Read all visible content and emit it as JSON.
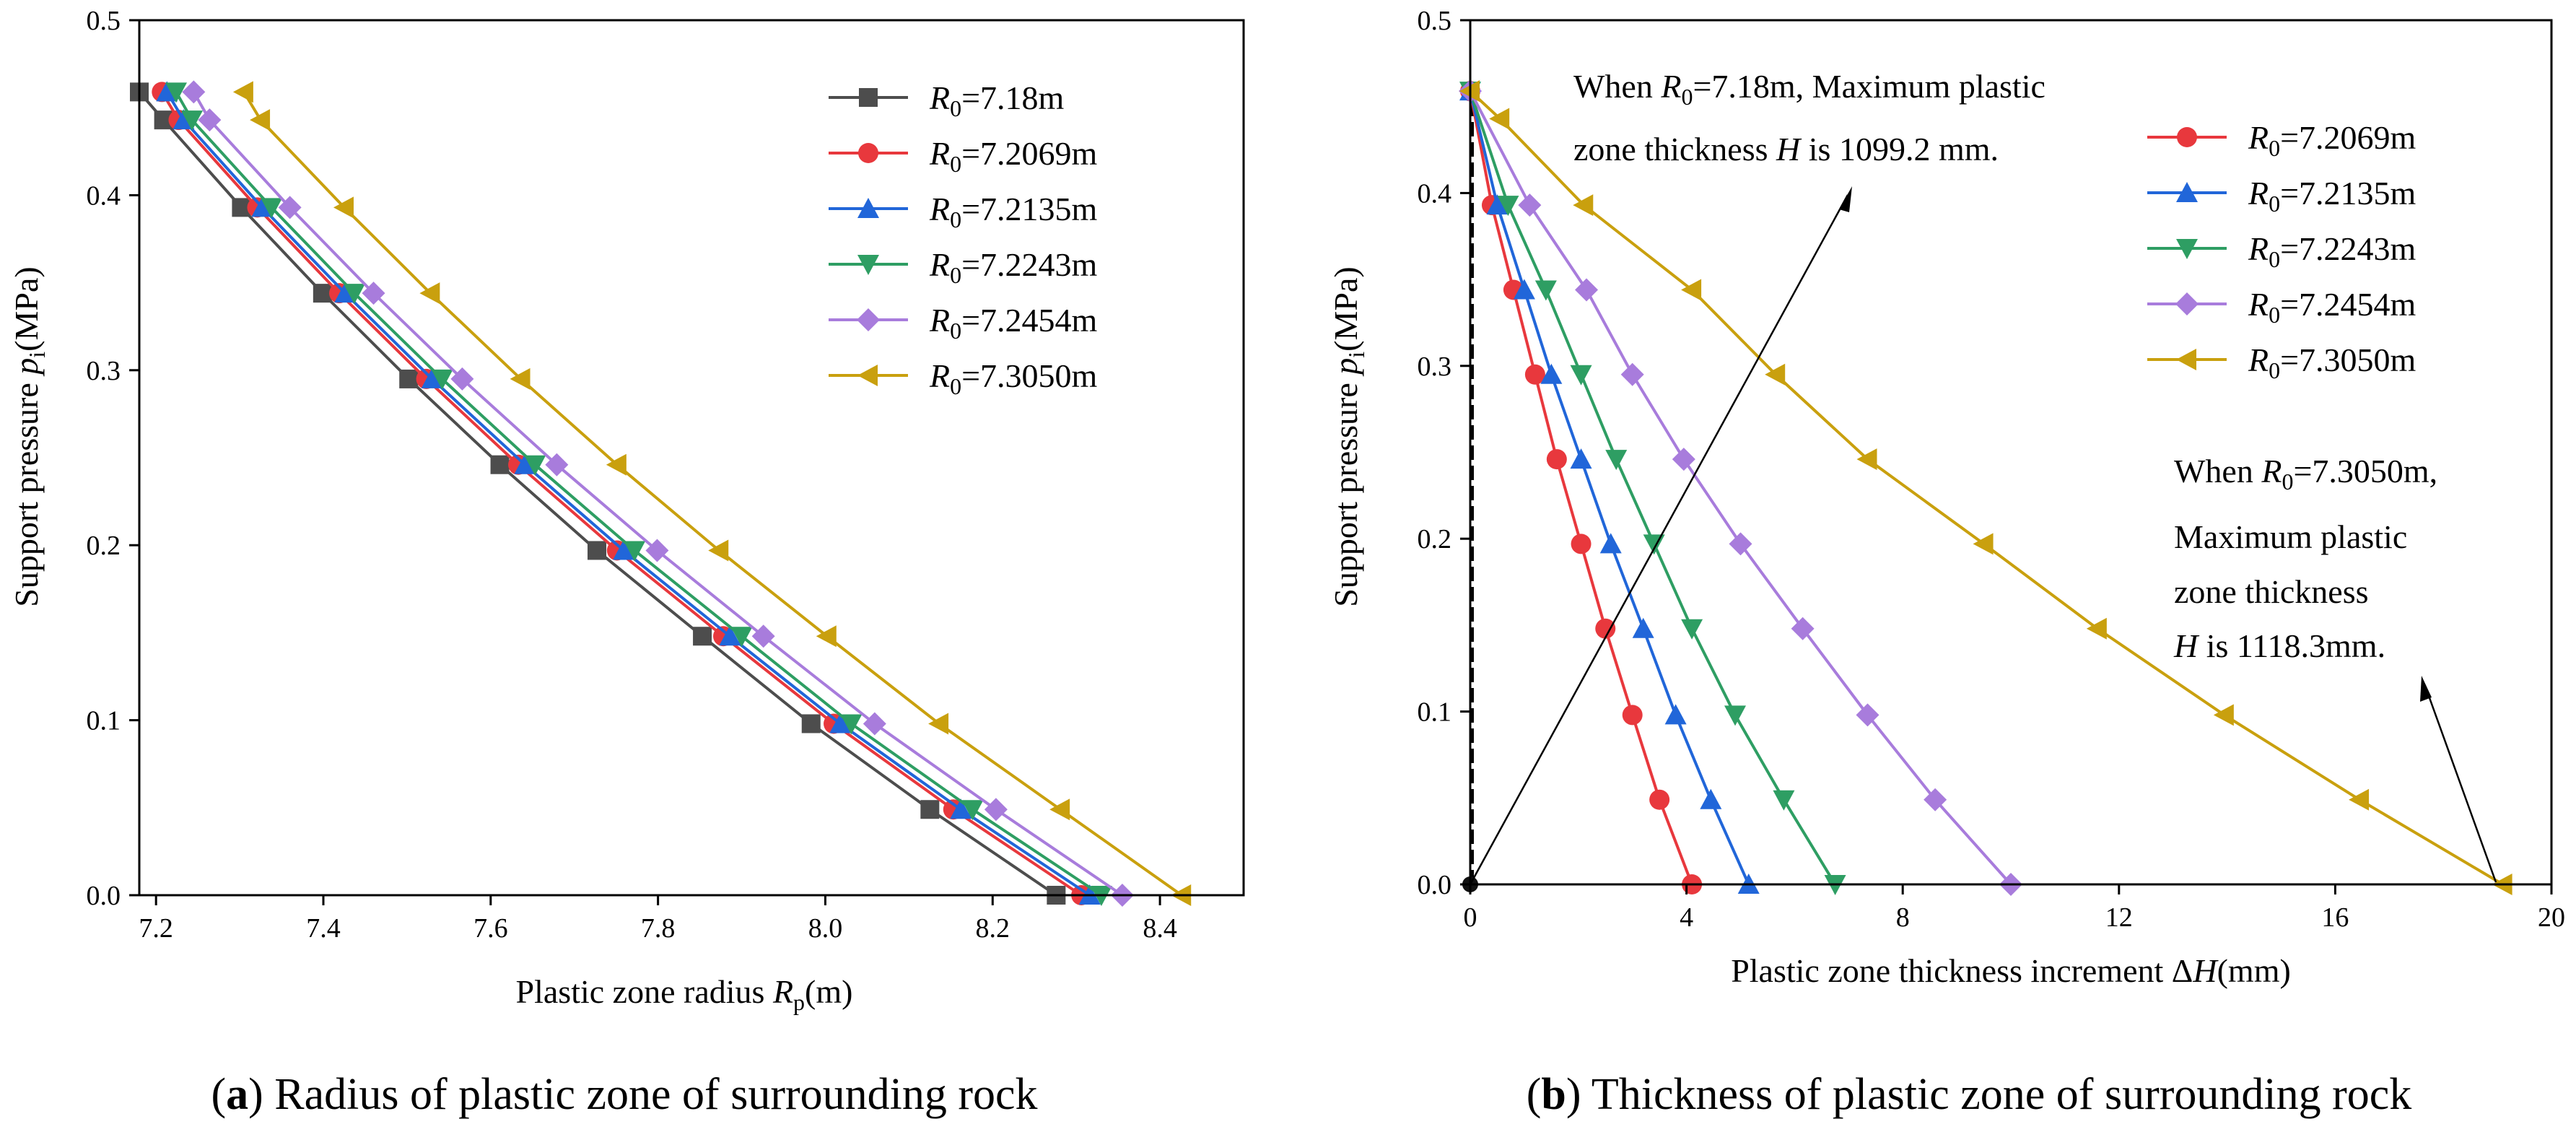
{
  "colors": {
    "s0": "#4d4d4d",
    "s1": "#e8383d",
    "s2": "#2166d9",
    "s3": "#2e9e63",
    "s4": "#a87cdc",
    "s5": "#c9a00e",
    "axis": "#000000"
  },
  "chart_data": [
    {
      "type": "line",
      "panel": "a",
      "caption_letter": "a",
      "caption_text": " Radius of plastic zone of surrounding rock",
      "xlabel": "Plastic zone radius ",
      "xlabel_sym": "R",
      "xlabel_sub": "p",
      "xlabel_tail": "(m)",
      "ylabel": "Support pressure ",
      "ylabel_sym": "p",
      "ylabel_sub": "i",
      "ylabel_tail": "(MPa)",
      "xlim": [
        7.18,
        8.5
      ],
      "ylim": [
        0,
        0.5
      ],
      "xticks": [
        7.2,
        7.4,
        7.6,
        7.8,
        8.0,
        8.2,
        8.4
      ],
      "xtick_labels": [
        "7.2",
        "7.4",
        "7.6",
        "7.8",
        "8.0",
        "8.2",
        "8.4"
      ],
      "yticks": [
        0,
        0.1,
        0.2,
        0.3,
        0.4,
        0.5
      ],
      "ytick_labels": [
        "0.0",
        "0.1",
        "0.2",
        "0.3",
        "0.4",
        "0.5"
      ],
      "series": [
        {
          "name": "R0=7.18m",
          "legend_sym": "R",
          "legend_sub": "0",
          "legend_value": "=7.18m",
          "marker": "square",
          "color_key": "s0",
          "points": [
            [
              7.18,
              0.459
            ],
            [
              7.209,
              0.443
            ],
            [
              7.302,
              0.393
            ],
            [
              7.399,
              0.344
            ],
            [
              7.502,
              0.295
            ],
            [
              7.611,
              0.246
            ],
            [
              7.727,
              0.197
            ],
            [
              7.853,
              0.148
            ],
            [
              7.983,
              0.098
            ],
            [
              8.125,
              0.049
            ],
            [
              8.276,
              0.0
            ]
          ]
        },
        {
          "name": "R0=7.2069m",
          "legend_sym": "R",
          "legend_sub": "0",
          "legend_value": "=7.2069m",
          "marker": "circle",
          "color_key": "s1",
          "points": [
            [
              7.207,
              0.459
            ],
            [
              7.227,
              0.443
            ],
            [
              7.321,
              0.393
            ],
            [
              7.419,
              0.344
            ],
            [
              7.523,
              0.295
            ],
            [
              7.633,
              0.246
            ],
            [
              7.751,
              0.197
            ],
            [
              7.878,
              0.148
            ],
            [
              8.01,
              0.098
            ],
            [
              8.153,
              0.049
            ],
            [
              8.306,
              0.0
            ]
          ]
        },
        {
          "name": "R0=7.2135m",
          "legend_sym": "R",
          "legend_sub": "0",
          "legend_value": "=7.2135m",
          "marker": "triangle-up",
          "color_key": "s2",
          "points": [
            [
              7.213,
              0.459
            ],
            [
              7.233,
              0.443
            ],
            [
              7.327,
              0.393
            ],
            [
              7.426,
              0.344
            ],
            [
              7.53,
              0.295
            ],
            [
              7.641,
              0.246
            ],
            [
              7.759,
              0.197
            ],
            [
              7.886,
              0.148
            ],
            [
              8.018,
              0.098
            ],
            [
              8.162,
              0.049
            ],
            [
              8.316,
              0.0
            ]
          ]
        },
        {
          "name": "R0=7.2243m",
          "legend_sym": "R",
          "legend_sub": "0",
          "legend_value": "=7.2243m",
          "marker": "triangle-down",
          "color_key": "s3",
          "points": [
            [
              7.224,
              0.459
            ],
            [
              7.243,
              0.443
            ],
            [
              7.338,
              0.393
            ],
            [
              7.437,
              0.344
            ],
            [
              7.542,
              0.295
            ],
            [
              7.653,
              0.246
            ],
            [
              7.772,
              0.197
            ],
            [
              7.9,
              0.148
            ],
            [
              8.031,
              0.098
            ],
            [
              8.176,
              0.049
            ],
            [
              8.33,
              0.0
            ]
          ]
        },
        {
          "name": "R0=7.2454m",
          "legend_sym": "R",
          "legend_sub": "0",
          "legend_value": "=7.2454m",
          "marker": "diamond",
          "color_key": "s4",
          "points": [
            [
              7.245,
              0.459
            ],
            [
              7.264,
              0.443
            ],
            [
              7.36,
              0.393
            ],
            [
              7.46,
              0.344
            ],
            [
              7.566,
              0.295
            ],
            [
              7.679,
              0.246
            ],
            [
              7.799,
              0.197
            ],
            [
              7.926,
              0.148
            ],
            [
              8.059,
              0.098
            ],
            [
              8.204,
              0.049
            ],
            [
              8.355,
              0.0
            ]
          ]
        },
        {
          "name": "R0=7.3050m",
          "legend_sym": "R",
          "legend_sub": "0",
          "legend_value": "=7.3050m",
          "marker": "triangle-left",
          "color_key": "s5",
          "points": [
            [
              7.305,
              0.459
            ],
            [
              7.325,
              0.443
            ],
            [
              7.425,
              0.393
            ],
            [
              7.528,
              0.344
            ],
            [
              7.636,
              0.295
            ],
            [
              7.751,
              0.246
            ],
            [
              7.873,
              0.197
            ],
            [
              8.002,
              0.148
            ],
            [
              8.136,
              0.098
            ],
            [
              8.281,
              0.049
            ],
            [
              8.426,
              0.0
            ]
          ]
        }
      ]
    },
    {
      "type": "line",
      "panel": "b",
      "caption_letter": "b",
      "caption_text": " Thickness of plastic zone of surrounding rock",
      "xlabel": "Plastic zone thickness increment Δ",
      "xlabel_sym": "H",
      "xlabel_sub": "",
      "xlabel_tail": "(mm)",
      "ylabel": "Support pressure ",
      "ylabel_sym": "p",
      "ylabel_sub": "i",
      "ylabel_tail": "(MPa)",
      "xlim": [
        0,
        20
      ],
      "ylim": [
        0,
        0.5
      ],
      "xticks": [
        0,
        4,
        8,
        12,
        16,
        20
      ],
      "xtick_labels": [
        "0",
        "4",
        "8",
        "12",
        "16",
        "20"
      ],
      "yticks": [
        0,
        0.1,
        0.2,
        0.3,
        0.4,
        0.5
      ],
      "ytick_labels": [
        "0.0",
        "0.1",
        "0.2",
        "0.3",
        "0.4",
        "0.5"
      ],
      "annotations": [
        {
          "line1_pre": "When ",
          "sym": "R",
          "sub": "0",
          "line1_post": "=7.18m, Maximum plastic",
          "line2_pre": "zone thickness ",
          "line2_sym": "H",
          "line2_post": " is 1099.2 mm."
        },
        {
          "line1_pre": "When ",
          "sym": "R",
          "sub": "0",
          "line1_post": "=7.3050m,",
          "line2": "Maximum plastic",
          "line3": "zone thickness",
          "line4_sym": "H",
          "line4_post": " is 1118.3mm."
        }
      ],
      "baseline_series": {
        "name": "R0=7.18m",
        "points": [
          [
            0,
            0
          ],
          [
            0,
            0.459
          ]
        ]
      },
      "series": [
        {
          "name": "R0=7.2069m",
          "legend_sym": "R",
          "legend_sub": "0",
          "legend_value": "=7.2069m",
          "marker": "circle",
          "color_key": "s1",
          "points": [
            [
              0,
              0.459
            ],
            [
              0.4,
              0.393
            ],
            [
              0.8,
              0.344
            ],
            [
              1.2,
              0.295
            ],
            [
              1.6,
              0.246
            ],
            [
              2.05,
              0.197
            ],
            [
              2.5,
              0.148
            ],
            [
              3.0,
              0.098
            ],
            [
              3.5,
              0.049
            ],
            [
              4.1,
              0.0
            ]
          ]
        },
        {
          "name": "R0=7.2135m",
          "legend_sym": "R",
          "legend_sub": "0",
          "legend_value": "=7.2135m",
          "marker": "triangle-up",
          "color_key": "s2",
          "points": [
            [
              0,
              0.459
            ],
            [
              0.5,
              0.393
            ],
            [
              1.0,
              0.344
            ],
            [
              1.5,
              0.295
            ],
            [
              2.05,
              0.246
            ],
            [
              2.6,
              0.197
            ],
            [
              3.2,
              0.148
            ],
            [
              3.8,
              0.098
            ],
            [
              4.45,
              0.049
            ],
            [
              5.15,
              0.0
            ]
          ]
        },
        {
          "name": "R0=7.2243m",
          "legend_sym": "R",
          "legend_sub": "0",
          "legend_value": "=7.2243m",
          "marker": "triangle-down",
          "color_key": "s3",
          "points": [
            [
              0,
              0.459
            ],
            [
              0.7,
              0.393
            ],
            [
              1.4,
              0.344
            ],
            [
              2.05,
              0.295
            ],
            [
              2.7,
              0.246
            ],
            [
              3.4,
              0.197
            ],
            [
              4.1,
              0.148
            ],
            [
              4.9,
              0.098
            ],
            [
              5.8,
              0.049
            ],
            [
              6.75,
              0.0
            ]
          ]
        },
        {
          "name": "R0=7.2454m",
          "legend_sym": "R",
          "legend_sub": "0",
          "legend_value": "=7.2454m",
          "marker": "diamond",
          "color_key": "s4",
          "points": [
            [
              0,
              0.459
            ],
            [
              1.1,
              0.393
            ],
            [
              2.15,
              0.344
            ],
            [
              3.0,
              0.295
            ],
            [
              3.95,
              0.246
            ],
            [
              5.0,
              0.197
            ],
            [
              6.15,
              0.148
            ],
            [
              7.35,
              0.098
            ],
            [
              8.6,
              0.049
            ],
            [
              10.0,
              0.0
            ]
          ]
        },
        {
          "name": "R0=7.3050m",
          "legend_sym": "R",
          "legend_sub": "0",
          "legend_value": "=7.3050m",
          "marker": "triangle-left",
          "color_key": "s5",
          "points": [
            [
              0,
              0.459
            ],
            [
              0.55,
              0.443
            ],
            [
              2.1,
              0.393
            ],
            [
              4.1,
              0.344
            ],
            [
              5.65,
              0.295
            ],
            [
              7.35,
              0.246
            ],
            [
              9.5,
              0.197
            ],
            [
              11.6,
              0.148
            ],
            [
              13.95,
              0.098
            ],
            [
              16.45,
              0.049
            ],
            [
              19.1,
              0.0
            ]
          ]
        }
      ]
    }
  ]
}
